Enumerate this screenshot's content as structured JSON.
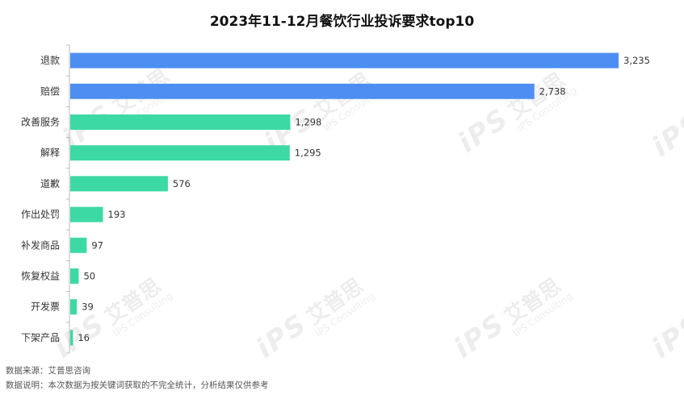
{
  "chart_data": {
    "type": "bar",
    "orientation": "horizontal",
    "title": "2023年11-12月餐饮行业投诉要求top10",
    "categories": [
      "退款",
      "赔偿",
      "改善服务",
      "解释",
      "道歉",
      "作出处罚",
      "补发商品",
      "恢复权益",
      "开发票",
      "下架产品"
    ],
    "values": [
      3235,
      2738,
      1298,
      1295,
      576,
      193,
      97,
      50,
      39,
      16
    ],
    "value_labels": [
      "3,235",
      "2,738",
      "1,298",
      "1,295",
      "576",
      "193",
      "97",
      "50",
      "39",
      "16"
    ],
    "bar_colors": [
      "#4d8ef2",
      "#4d8ef2",
      "#3dd9a4",
      "#3dd9a4",
      "#3dd9a4",
      "#3dd9a4",
      "#3dd9a4",
      "#3dd9a4",
      "#3dd9a4",
      "#3dd9a4"
    ],
    "xlim": [
      0,
      3500
    ],
    "grid": false,
    "legend": "none"
  },
  "footnotes": {
    "source": "数据来源：艾普思咨询",
    "note": "数据说明：本次数据为按关键词获取的不完全统计，分析结果仅供参考"
  },
  "watermark": {
    "mark": "iPS",
    "name": "艾普思",
    "sub": "IPS Consulting"
  },
  "colors": {
    "axis": "#bbbbbb"
  }
}
